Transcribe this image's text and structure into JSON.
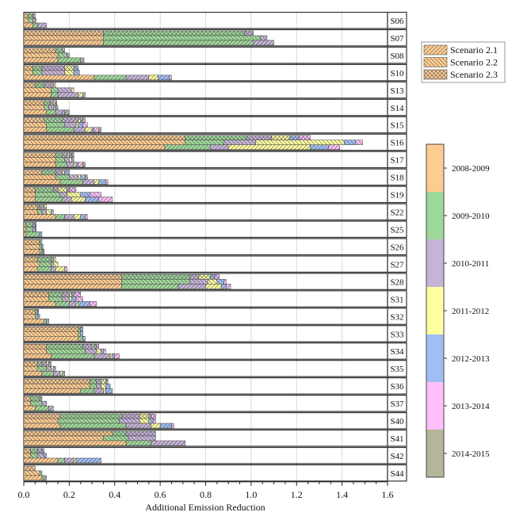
{
  "chart_data": {
    "type": "bar",
    "orientation": "horizontal-stacked-panels",
    "xlabel": "Additional Emission Reduction",
    "xlim": [
      0,
      1.6
    ],
    "xticks": [
      "0.0",
      "0.2",
      "0.4",
      "0.6",
      "0.8",
      "1.0",
      "1.2",
      "1.4",
      "1.6"
    ],
    "xtick_values": [
      0,
      0.2,
      0.4,
      0.6,
      0.8,
      1.0,
      1.2,
      1.4,
      1.6
    ],
    "grid": true,
    "scenario_legend": {
      "placement": "top-right",
      "entries": [
        {
          "name": "Scenario 2.1",
          "pattern": "diagonal-forward"
        },
        {
          "name": "Scenario 2.2",
          "pattern": "diagonal-backward"
        },
        {
          "name": "Scenario 2.3",
          "pattern": "crosshatch"
        }
      ]
    },
    "period_legend": {
      "placement": "right",
      "periods": [
        "2008-2009",
        "2009-2010",
        "2010-2011",
        "2011-2012",
        "2012-2013",
        "2013-2014",
        "2014-2015"
      ],
      "colors": [
        "#ffcc8f",
        "#9fd99a",
        "#c6b3d8",
        "#ffff9f",
        "#9fbef5",
        "#ffbff8",
        "#b5b59a"
      ]
    },
    "scenario_order_in_panel": [
      "Scenario 2.3",
      "Scenario 2.2",
      "Scenario 2.1"
    ],
    "note": "Each panel: 3 bars (top=2.3, middle=2.2, bottom=2.1); each bar is cumulative stacked segments per period; values are cumulative end points.",
    "sites": [
      {
        "id": "S06",
        "s23": [
          0.02,
          0.04,
          0.05,
          0.05,
          0.05,
          0.05,
          0.05
        ],
        "s22": [
          0.02,
          0.04,
          0.05,
          0.055,
          0.055,
          0.055,
          0.055
        ],
        "s21": [
          0.04,
          0.06,
          0.1,
          0.1,
          0.1,
          0.1,
          0.1
        ]
      },
      {
        "id": "S07",
        "s23": [
          0.35,
          0.97,
          1.01,
          1.01,
          1.01,
          1.01,
          1.01
        ],
        "s22": [
          0.35,
          1.04,
          1.07,
          1.07,
          1.07,
          1.07,
          1.07
        ],
        "s21": [
          0.35,
          1.01,
          1.1,
          1.1,
          1.1,
          1.1,
          1.1
        ]
      },
      {
        "id": "S08",
        "s23": [
          0.14,
          0.17,
          0.18,
          0.18,
          0.18,
          0.18,
          0.18
        ],
        "s22": [
          0.15,
          0.19,
          0.2,
          0.2,
          0.2,
          0.2,
          0.2
        ],
        "s21": [
          0.15,
          0.25,
          0.265,
          0.265,
          0.265,
          0.265,
          0.265
        ]
      },
      {
        "id": "S10",
        "s23": [
          0.04,
          0.08,
          0.18,
          0.22,
          0.24,
          0.24,
          0.24
        ],
        "s22": [
          0.04,
          0.08,
          0.18,
          0.22,
          0.245,
          0.245,
          0.245
        ],
        "s21": [
          0.31,
          0.45,
          0.55,
          0.59,
          0.64,
          0.65,
          0.65
        ]
      },
      {
        "id": "S13",
        "s23": [
          0.05,
          0.09,
          0.13,
          0.14,
          0.14,
          0.14,
          0.14
        ],
        "s22": [
          0.12,
          0.15,
          0.21,
          0.22,
          0.22,
          0.22,
          0.22
        ],
        "s21": [
          0.12,
          0.15,
          0.24,
          0.26,
          0.27,
          0.27,
          0.27
        ]
      },
      {
        "id": "S14",
        "s23": [
          0.09,
          0.115,
          0.13,
          0.14,
          0.145,
          0.145,
          0.145
        ],
        "s22": [
          0.09,
          0.11,
          0.125,
          0.13,
          0.14,
          0.14,
          0.15
        ],
        "s21": [
          0.1,
          0.14,
          0.17,
          0.17,
          0.18,
          0.18,
          0.2
        ]
      },
      {
        "id": "S15",
        "s23": [
          0.09,
          0.17,
          0.24,
          0.25,
          0.26,
          0.27,
          0.27
        ],
        "s22": [
          0.1,
          0.18,
          0.23,
          0.24,
          0.26,
          0.28,
          0.28
        ],
        "s21": [
          0.1,
          0.22,
          0.27,
          0.3,
          0.31,
          0.33,
          0.34
        ]
      },
      {
        "id": "S16",
        "s23": [
          0.71,
          0.98,
          1.09,
          1.17,
          1.21,
          1.26,
          1.26
        ],
        "s22": [
          0.71,
          0.88,
          1.02,
          1.41,
          1.46,
          1.49,
          1.49
        ],
        "s21": [
          0.62,
          0.82,
          0.9,
          1.26,
          1.34,
          1.39,
          1.39
        ]
      },
      {
        "id": "S17",
        "s23": [
          0.14,
          0.17,
          0.19,
          0.2,
          0.21,
          0.21,
          0.22
        ],
        "s22": [
          0.14,
          0.18,
          0.2,
          0.21,
          0.22,
          0.22,
          0.22
        ],
        "s21": [
          0.14,
          0.19,
          0.22,
          0.23,
          0.24,
          0.26,
          0.27
        ]
      },
      {
        "id": "S18",
        "s23": [
          0.08,
          0.14,
          0.17,
          0.18,
          0.2,
          0.2,
          0.2
        ],
        "s22": [
          0.14,
          0.2,
          0.24,
          0.25,
          0.27,
          0.27,
          0.28
        ],
        "s21": [
          0.16,
          0.26,
          0.31,
          0.33,
          0.36,
          0.37,
          0.37
        ]
      },
      {
        "id": "S19",
        "s23": [
          0.05,
          0.13,
          0.15,
          0.19,
          0.2,
          0.23,
          0.23
        ],
        "s22": [
          0.05,
          0.16,
          0.19,
          0.25,
          0.29,
          0.34,
          0.34
        ],
        "s21": [
          0.05,
          0.17,
          0.21,
          0.27,
          0.33,
          0.39,
          0.39
        ]
      },
      {
        "id": "S22",
        "s23": [
          0.06,
          0.07,
          0.09,
          0.1,
          0.1,
          0.1,
          0.1
        ],
        "s22": [
          0.06,
          0.08,
          0.1,
          0.12,
          0.13,
          0.13,
          0.13
        ],
        "s21": [
          0.14,
          0.18,
          0.22,
          0.25,
          0.27,
          0.28,
          0.28
        ]
      },
      {
        "id": "S25",
        "s23": [
          0.01,
          0.04,
          0.05,
          0.05,
          0.055,
          0.055,
          0.055
        ],
        "s22": [
          0.01,
          0.04,
          0.05,
          0.05,
          0.055,
          0.055,
          0.055
        ],
        "s21": [
          0.01,
          0.07,
          0.07,
          0.07,
          0.08,
          0.08,
          0.08
        ]
      },
      {
        "id": "S26",
        "s23": [
          0.07,
          0.08,
          0.08,
          0.08,
          0.08,
          0.08,
          0.08
        ],
        "s22": [
          0.07,
          0.08,
          0.08,
          0.08,
          0.085,
          0.085,
          0.085
        ],
        "s21": [
          0.07,
          0.08,
          0.085,
          0.085,
          0.09,
          0.09,
          0.09
        ]
      },
      {
        "id": "S27",
        "s23": [
          0.06,
          0.12,
          0.13,
          0.14,
          0.14,
          0.14,
          0.14
        ],
        "s22": [
          0.07,
          0.12,
          0.13,
          0.15,
          0.15,
          0.15,
          0.15
        ],
        "s21": [
          0.06,
          0.12,
          0.14,
          0.18,
          0.18,
          0.19,
          0.19
        ]
      },
      {
        "id": "S28",
        "s23": [
          0.43,
          0.73,
          0.77,
          0.82,
          0.84,
          0.86,
          0.86
        ],
        "s22": [
          0.43,
          0.73,
          0.81,
          0.85,
          0.88,
          0.89,
          0.89
        ],
        "s21": [
          0.43,
          0.68,
          0.8,
          0.87,
          0.89,
          0.91,
          0.91
        ]
      },
      {
        "id": "S31",
        "s23": [
          0.11,
          0.17,
          0.2,
          0.21,
          0.22,
          0.25,
          0.25
        ],
        "s22": [
          0.11,
          0.17,
          0.2,
          0.21,
          0.23,
          0.26,
          0.26
        ],
        "s21": [
          0.14,
          0.2,
          0.23,
          0.24,
          0.29,
          0.32,
          0.32
        ]
      },
      {
        "id": "S32",
        "s23": [
          0.05,
          0.06,
          0.06,
          0.06,
          0.065,
          0.065,
          0.065
        ],
        "s22": [
          0.05,
          0.06,
          0.06,
          0.06,
          0.07,
          0.07,
          0.07
        ],
        "s21": [
          0.09,
          0.1,
          0.1,
          0.1,
          0.11,
          0.11,
          0.11
        ]
      },
      {
        "id": "S33",
        "s23": [
          0.24,
          0.25,
          0.25,
          0.25,
          0.26,
          0.26,
          0.26
        ],
        "s22": [
          0.24,
          0.25,
          0.25,
          0.25,
          0.26,
          0.26,
          0.26
        ],
        "s21": [
          0.24,
          0.26,
          0.26,
          0.26,
          0.27,
          0.27,
          0.27
        ]
      },
      {
        "id": "S34",
        "s23": [
          0.1,
          0.26,
          0.3,
          0.31,
          0.32,
          0.33,
          0.33
        ],
        "s22": [
          0.1,
          0.27,
          0.32,
          0.34,
          0.35,
          0.36,
          0.36
        ],
        "s21": [
          0.12,
          0.31,
          0.38,
          0.39,
          0.4,
          0.42,
          0.42
        ]
      },
      {
        "id": "S35",
        "s23": [
          0.06,
          0.08,
          0.1,
          0.11,
          0.12,
          0.12,
          0.12
        ],
        "s22": [
          0.06,
          0.1,
          0.12,
          0.13,
          0.14,
          0.14,
          0.14
        ],
        "s21": [
          0.08,
          0.13,
          0.16,
          0.17,
          0.18,
          0.18,
          0.18
        ]
      },
      {
        "id": "S36",
        "s23": [
          0.29,
          0.32,
          0.34,
          0.36,
          0.37,
          0.37,
          0.37
        ],
        "s22": [
          0.29,
          0.32,
          0.34,
          0.36,
          0.38,
          0.38,
          0.38
        ],
        "s21": [
          0.25,
          0.31,
          0.35,
          0.36,
          0.39,
          0.39,
          0.39
        ]
      },
      {
        "id": "S37",
        "s23": [
          0.03,
          0.07,
          0.08,
          0.08,
          0.08,
          0.08,
          0.08
        ],
        "s22": [
          0.03,
          0.08,
          0.1,
          0.1,
          0.1,
          0.1,
          0.1
        ],
        "s21": [
          0.05,
          0.11,
          0.13,
          0.13,
          0.13,
          0.13,
          0.13
        ]
      },
      {
        "id": "S40",
        "s23": [
          0.16,
          0.43,
          0.51,
          0.55,
          0.56,
          0.58,
          0.58
        ],
        "s22": [
          0.15,
          0.42,
          0.51,
          0.55,
          0.57,
          0.58,
          0.58
        ],
        "s21": [
          0.16,
          0.45,
          0.56,
          0.6,
          0.65,
          0.66,
          0.66
        ]
      },
      {
        "id": "S41",
        "s23": [
          0.39,
          0.45,
          0.58,
          0.58,
          0.58,
          0.58,
          0.58
        ],
        "s22": [
          0.35,
          0.46,
          0.58,
          0.58,
          0.58,
          0.58,
          0.58
        ],
        "s21": [
          0.45,
          0.56,
          0.71,
          0.71,
          0.71,
          0.71,
          0.71
        ]
      },
      {
        "id": "S42",
        "s23": [
          0.03,
          0.06,
          0.08,
          0.08,
          0.09,
          0.09,
          0.09
        ],
        "s22": [
          0.03,
          0.06,
          0.09,
          0.09,
          0.1,
          0.1,
          0.1
        ],
        "s21": [
          0.15,
          0.18,
          0.22,
          0.23,
          0.34,
          0.34,
          0.34
        ]
      },
      {
        "id": "S44",
        "s23": [
          0.05,
          0.05,
          0.05,
          0.05,
          0.05,
          0.05,
          0.05
        ],
        "s22": [
          0.07,
          0.08,
          0.08,
          0.08,
          0.08,
          0.08,
          0.08
        ],
        "s21": [
          0.08,
          0.09,
          0.1,
          0.1,
          0.1,
          0.1,
          0.1
        ]
      }
    ]
  }
}
